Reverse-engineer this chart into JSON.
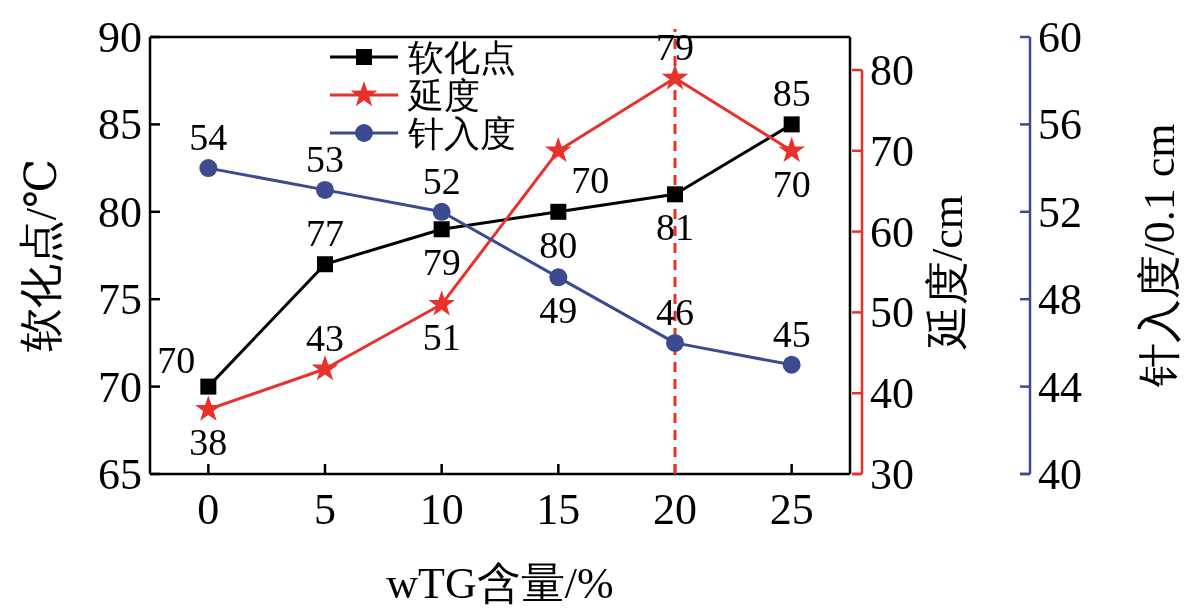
{
  "chart_data": {
    "type": "line",
    "xlabel": "wTG含量/%",
    "ylabel": "软化点/℃",
    "y2label": "延度/cm",
    "y3label": "针入度/0.1 cm",
    "x": [
      0,
      5,
      10,
      15,
      20,
      25
    ],
    "xlim": [
      -2.5,
      27.5
    ],
    "xticks": [
      0,
      5,
      10,
      15,
      20,
      25
    ],
    "ylim": [
      65,
      90
    ],
    "yticks": [
      65,
      70,
      75,
      80,
      85,
      90
    ],
    "y2lim": [
      30,
      80
    ],
    "y2ticks": [
      30,
      40,
      50,
      60,
      70,
      80
    ],
    "y3lim": [
      40,
      60
    ],
    "y3ticks": [
      40,
      44,
      48,
      52,
      56,
      60
    ],
    "series": [
      {
        "name": "软化点",
        "color": "#000000",
        "marker": "square",
        "values": [
          70,
          77,
          79,
          80,
          81,
          85
        ]
      },
      {
        "name": "延度",
        "color": "#e8312a",
        "marker": "star",
        "axis": "y2",
        "values": [
          38,
          43,
          51,
          70,
          79,
          70
        ]
      },
      {
        "name": "针入度",
        "color": "#3c4b8f",
        "marker": "circle",
        "axis": "y3",
        "values": [
          54,
          53,
          52,
          49,
          46,
          45
        ]
      }
    ],
    "ref_lines": [
      {
        "axis": "x",
        "value": 20,
        "color": "#e8312a",
        "line_style": "dashed"
      }
    ],
    "data_labels": true,
    "legend": "top",
    "grid": false
  }
}
